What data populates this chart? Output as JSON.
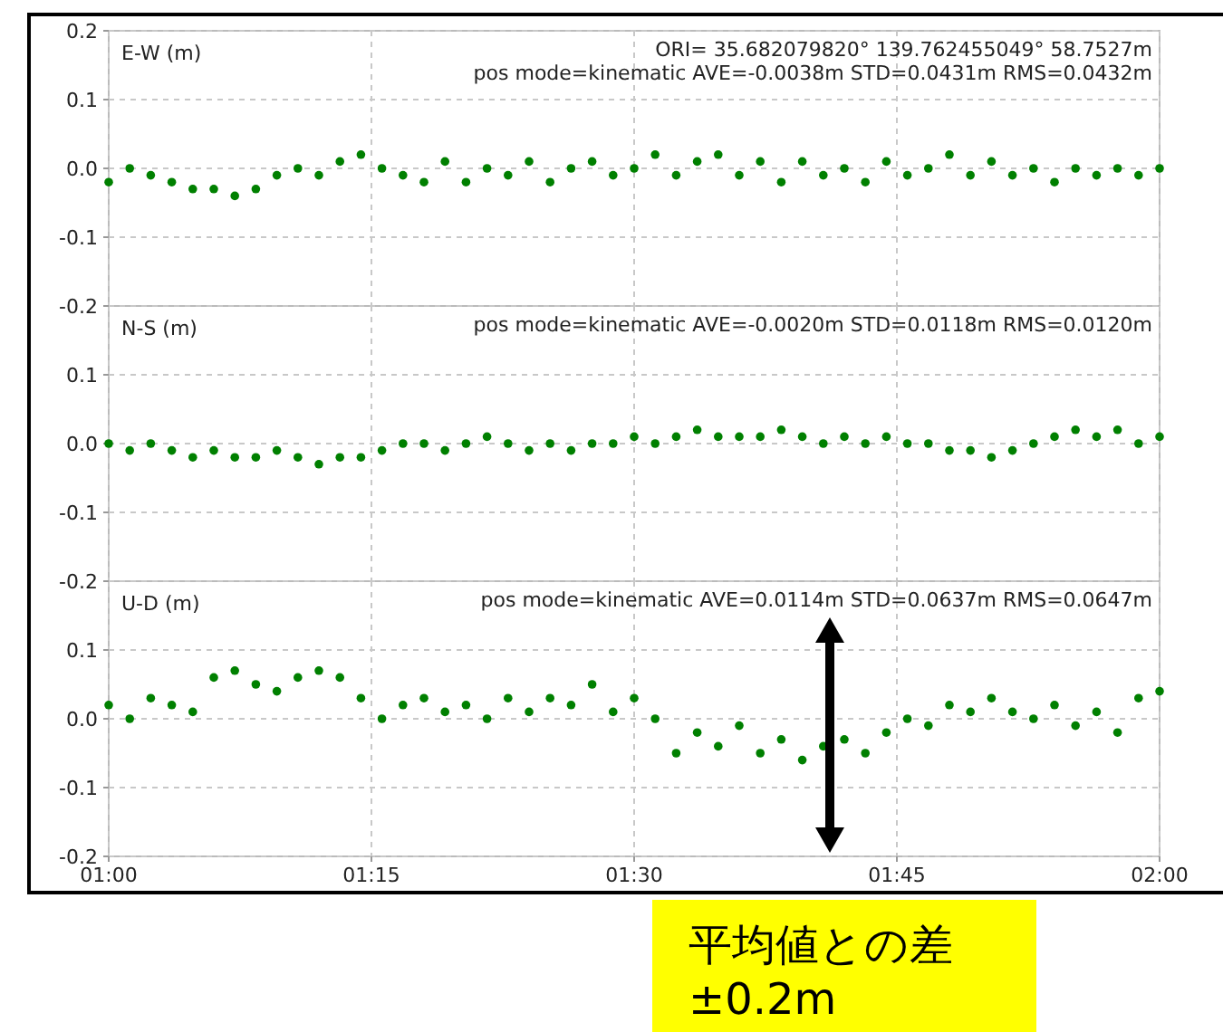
{
  "chart_data": [
    {
      "type": "scatter",
      "ylabel": "E-W (m)",
      "marker": "circle",
      "grid": true,
      "tick_labels": "y",
      "annotations": [
        "ORI= 35.682079820°  139.762455049° 58.7527m",
        "pos mode=kinematic AVE=-0.0038m STD=0.0431m RMS=0.0432m"
      ],
      "xlim": [
        1,
        2
      ],
      "xticks": [
        {
          "value": 1,
          "label": null
        },
        {
          "value": 1.25,
          "label": null
        },
        {
          "value": 1.5,
          "label": null
        },
        {
          "value": 1.75,
          "label": null
        },
        {
          "value": 2,
          "label": null
        }
      ],
      "ylim": [
        -0.2,
        0.2
      ],
      "yticks": [
        {
          "value": -0.2,
          "label": "-0.2"
        },
        {
          "value": -0.1,
          "label": "-0.1"
        },
        {
          "value": 0,
          "label": "0.0"
        },
        {
          "value": 0.1,
          "label": "0.1"
        },
        {
          "value": 0.2,
          "label": "0.2"
        }
      ],
      "x": [
        1.0,
        1.02,
        1.04,
        1.06,
        1.08,
        1.1,
        1.12,
        1.14,
        1.16,
        1.18,
        1.2,
        1.22,
        1.24,
        1.26,
        1.28,
        1.3,
        1.32,
        1.34,
        1.36,
        1.38,
        1.4,
        1.42,
        1.44,
        1.46,
        1.48,
        1.5,
        1.52,
        1.54,
        1.56,
        1.58,
        1.6,
        1.62,
        1.64,
        1.66,
        1.68,
        1.7,
        1.72,
        1.74,
        1.76,
        1.78,
        1.8,
        1.82,
        1.84,
        1.86,
        1.88,
        1.9,
        1.92,
        1.94,
        1.96,
        1.98,
        2.0
      ],
      "series": [
        {
          "color": "#008000",
          "values": [
            -0.02,
            0.0,
            -0.01,
            -0.02,
            -0.03,
            -0.03,
            -0.04,
            -0.03,
            -0.01,
            0.0,
            -0.01,
            0.01,
            0.02,
            0.0,
            -0.01,
            -0.02,
            0.01,
            -0.02,
            0.0,
            -0.01,
            0.01,
            -0.02,
            0.0,
            0.01,
            -0.01,
            0.0,
            0.02,
            -0.01,
            0.01,
            0.02,
            -0.01,
            0.01,
            -0.02,
            0.01,
            -0.01,
            0.0,
            -0.02,
            0.01,
            -0.01,
            0.0,
            0.02,
            -0.01,
            0.01,
            -0.01,
            0.0,
            -0.02,
            0.0,
            -0.01,
            0.0,
            -0.01,
            0.0
          ]
        }
      ]
    },
    {
      "type": "scatter",
      "ylabel": "N-S (m)",
      "marker": "circle",
      "grid": true,
      "tick_labels": "y",
      "annotations": [
        "pos mode=kinematic AVE=-0.0020m STD=0.0118m RMS=0.0120m"
      ],
      "xlim": [
        1,
        2
      ],
      "xticks": [
        {
          "value": 1,
          "label": null
        },
        {
          "value": 1.25,
          "label": null
        },
        {
          "value": 1.5,
          "label": null
        },
        {
          "value": 1.75,
          "label": null
        },
        {
          "value": 2,
          "label": null
        }
      ],
      "ylim": [
        -0.2,
        0.2
      ],
      "yticks": [
        {
          "value": -0.2,
          "label": "-0.2"
        },
        {
          "value": -0.1,
          "label": "-0.1"
        },
        {
          "value": 0,
          "label": "0.0"
        },
        {
          "value": 0.1,
          "label": "0.1"
        },
        {
          "value": 0.2,
          "label": null
        }
      ],
      "x": [
        1.0,
        1.02,
        1.04,
        1.06,
        1.08,
        1.1,
        1.12,
        1.14,
        1.16,
        1.18,
        1.2,
        1.22,
        1.24,
        1.26,
        1.28,
        1.3,
        1.32,
        1.34,
        1.36,
        1.38,
        1.4,
        1.42,
        1.44,
        1.46,
        1.48,
        1.5,
        1.52,
        1.54,
        1.56,
        1.58,
        1.6,
        1.62,
        1.64,
        1.66,
        1.68,
        1.7,
        1.72,
        1.74,
        1.76,
        1.78,
        1.8,
        1.82,
        1.84,
        1.86,
        1.88,
        1.9,
        1.92,
        1.94,
        1.96,
        1.98,
        2.0
      ],
      "series": [
        {
          "color": "#008000",
          "values": [
            0.0,
            -0.01,
            0.0,
            -0.01,
            -0.02,
            -0.01,
            -0.02,
            -0.02,
            -0.01,
            -0.02,
            -0.03,
            -0.02,
            -0.02,
            -0.01,
            0.0,
            0.0,
            -0.01,
            0.0,
            0.01,
            0.0,
            -0.01,
            0.0,
            -0.01,
            0.0,
            0.0,
            0.01,
            0.0,
            0.01,
            0.02,
            0.01,
            0.01,
            0.01,
            0.02,
            0.01,
            0.0,
            0.01,
            0.0,
            0.01,
            0.0,
            0.0,
            -0.01,
            -0.01,
            -0.02,
            -0.01,
            0.0,
            0.01,
            0.02,
            0.01,
            0.02,
            0.0,
            0.01
          ]
        }
      ]
    },
    {
      "type": "scatter",
      "ylabel": "U-D (m)",
      "marker": "circle",
      "grid": true,
      "annotations": [
        "pos mode=kinematic AVE=0.0114m STD=0.0637m RMS=0.0647m"
      ],
      "xlim": [
        1,
        2
      ],
      "xticks": [
        {
          "value": 1,
          "label": "01:00"
        },
        {
          "value": 1.25,
          "label": "01:15"
        },
        {
          "value": 1.5,
          "label": "01:30"
        },
        {
          "value": 1.75,
          "label": "01:45"
        },
        {
          "value": 2,
          "label": "02:00"
        }
      ],
      "ylim": [
        -0.2,
        0.2
      ],
      "yticks": [
        {
          "value": -0.2,
          "label": "-0.2"
        },
        {
          "value": -0.1,
          "label": "-0.1"
        },
        {
          "value": 0,
          "label": "0.0"
        },
        {
          "value": 0.1,
          "label": "0.1"
        },
        {
          "value": 0.2,
          "label": null
        }
      ],
      "x": [
        1.0,
        1.02,
        1.04,
        1.06,
        1.08,
        1.1,
        1.12,
        1.14,
        1.16,
        1.18,
        1.2,
        1.22,
        1.24,
        1.26,
        1.28,
        1.3,
        1.32,
        1.34,
        1.36,
        1.38,
        1.4,
        1.42,
        1.44,
        1.46,
        1.48,
        1.5,
        1.52,
        1.54,
        1.56,
        1.58,
        1.6,
        1.62,
        1.64,
        1.66,
        1.68,
        1.7,
        1.72,
        1.74,
        1.76,
        1.78,
        1.8,
        1.82,
        1.84,
        1.86,
        1.88,
        1.9,
        1.92,
        1.94,
        1.96,
        1.98,
        2.0
      ],
      "series": [
        {
          "color": "#008000",
          "values": [
            0.02,
            0.0,
            0.03,
            0.02,
            0.01,
            0.06,
            0.07,
            0.05,
            0.04,
            0.06,
            0.07,
            0.06,
            0.03,
            0.0,
            0.02,
            0.03,
            0.01,
            0.02,
            0.0,
            0.03,
            0.01,
            0.03,
            0.02,
            0.05,
            0.01,
            0.03,
            0.0,
            -0.05,
            -0.02,
            -0.04,
            -0.01,
            -0.05,
            -0.03,
            -0.06,
            -0.04,
            -0.03,
            -0.05,
            -0.02,
            0.0,
            -0.01,
            0.02,
            0.01,
            0.03,
            0.01,
            0.0,
            0.02,
            -0.01,
            0.01,
            -0.02,
            0.03,
            0.04
          ]
        }
      ]
    },
    {
      "type": "other",
      "annotations": [
        "平均値との差 ±0.2m"
      ]
    }
  ]
}
